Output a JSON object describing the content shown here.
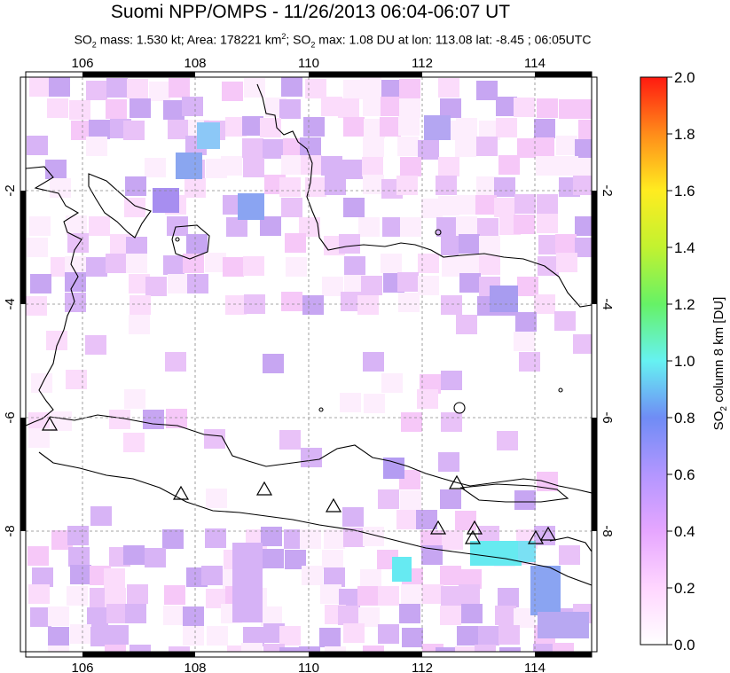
{
  "title": "Suomi NPP/OMPS - 11/26/2013 06:04-06:07 UT",
  "subtitle": {
    "p1": "SO",
    "p1_sub": "2",
    "p2": " mass: 1.530 kt; Area: 178221 km",
    "p2_sup": "2",
    "p3": "; SO",
    "p3_sub": "2",
    "p4": " max: 1.08 DU at lon: 113.08 lat: -8.45 ; 06:05UTC"
  },
  "map": {
    "lon_range": [
      105,
      115
    ],
    "lat_range": [
      -10.2,
      -0.9
    ],
    "lon_ticks": [
      "106",
      "108",
      "110",
      "112",
      "114"
    ],
    "lat_ticks": [
      "-2",
      "-4",
      "-6",
      "-8"
    ],
    "volcanoes_marked": 10
  },
  "colorbar": {
    "title_pre": "SO",
    "title_sub": "2",
    "title_post": " column 8 km [DU]",
    "ticks": [
      "0.0",
      "0.2",
      "0.4",
      "0.6",
      "0.8",
      "1.0",
      "1.2",
      "1.4",
      "1.6",
      "1.8",
      "2.0"
    ],
    "colors": [
      "#ffffff",
      "#ffd6ff",
      "#e6a6ff",
      "#b396ff",
      "#6f8cf5",
      "#66f2f2",
      "#66f266",
      "#c2f230",
      "#ffec20",
      "#ff8c1a",
      "#ff1a10"
    ]
  }
}
